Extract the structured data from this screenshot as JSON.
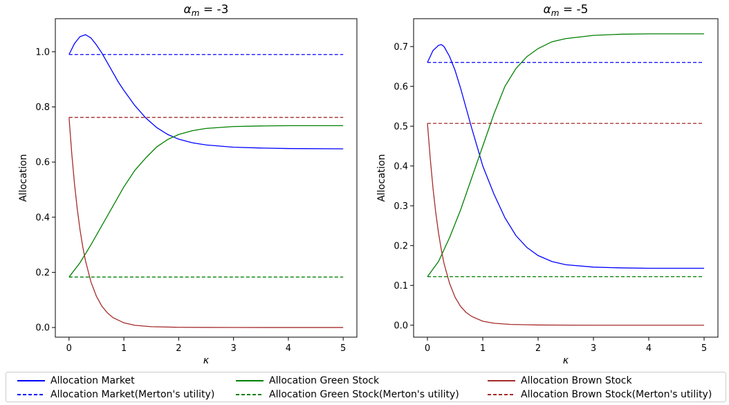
{
  "chart_data": [
    {
      "type": "line",
      "title_prefix": "α",
      "title_subscript": "m",
      "title_suffix": " = -3",
      "xlabel": "κ",
      "ylabel": "Allocation",
      "xlim": [
        -0.25,
        5.25
      ],
      "ylim": [
        -0.035,
        1.12
      ],
      "xticks": [
        0,
        1,
        2,
        3,
        4,
        5
      ],
      "yticks": [
        0.0,
        0.2,
        0.4,
        0.6,
        0.8,
        1.0
      ],
      "ytick_labels": [
        "0.0",
        "0.2",
        "0.4",
        "0.6",
        "0.8",
        "1.0"
      ],
      "series": [
        {
          "name": "Allocation Market",
          "color": "#0000ff",
          "dash": "solid",
          "x": [
            0,
            0.1,
            0.2,
            0.3,
            0.4,
            0.5,
            0.6,
            0.7,
            0.8,
            0.9,
            1.0,
            1.2,
            1.4,
            1.6,
            1.8,
            2.0,
            2.25,
            2.5,
            3.0,
            3.5,
            4.0,
            5.0
          ],
          "y": [
            0.99,
            1.03,
            1.055,
            1.062,
            1.05,
            1.025,
            0.995,
            0.96,
            0.925,
            0.89,
            0.86,
            0.805,
            0.76,
            0.725,
            0.7,
            0.683,
            0.67,
            0.662,
            0.654,
            0.651,
            0.649,
            0.648
          ]
        },
        {
          "name": "Allocation Market(Merton's utility)",
          "color": "#0000ff",
          "dash": "dashed",
          "x": [
            0,
            5
          ],
          "y": [
            0.99,
            0.99
          ]
        },
        {
          "name": "Allocation Green Stock",
          "color": "#008000",
          "dash": "solid",
          "x": [
            0,
            0.2,
            0.4,
            0.6,
            0.8,
            1.0,
            1.2,
            1.4,
            1.6,
            1.8,
            2.0,
            2.25,
            2.5,
            3.0,
            3.5,
            4.0,
            5.0
          ],
          "y": [
            0.183,
            0.235,
            0.3,
            0.37,
            0.44,
            0.51,
            0.57,
            0.615,
            0.655,
            0.682,
            0.7,
            0.714,
            0.722,
            0.729,
            0.731,
            0.732,
            0.732
          ]
        },
        {
          "name": "Allocation Green Stock(Merton's utility)",
          "color": "#008000",
          "dash": "dashed",
          "x": [
            0,
            5
          ],
          "y": [
            0.183,
            0.183
          ]
        },
        {
          "name": "Allocation Brown Stock",
          "color": "#a52a2a",
          "dash": "solid",
          "x": [
            0,
            0.05,
            0.1,
            0.15,
            0.2,
            0.25,
            0.3,
            0.4,
            0.5,
            0.6,
            0.7,
            0.8,
            1.0,
            1.2,
            1.5,
            2.0,
            2.5,
            3.0,
            4.0,
            5.0
          ],
          "y": [
            0.762,
            0.63,
            0.52,
            0.43,
            0.355,
            0.293,
            0.242,
            0.165,
            0.113,
            0.077,
            0.053,
            0.036,
            0.017,
            0.008,
            0.003,
            0.0008,
            0.0003,
            0.0001,
            0.0,
            0.0
          ]
        },
        {
          "name": "Allocation Brown Stock(Merton's utility)",
          "color": "#a52a2a",
          "dash": "dashed",
          "x": [
            0,
            5
          ],
          "y": [
            0.762,
            0.762
          ]
        }
      ]
    },
    {
      "type": "line",
      "title_prefix": "α",
      "title_subscript": "m",
      "title_suffix": " = -5",
      "xlabel": "κ",
      "ylabel": "Allocation",
      "xlim": [
        -0.25,
        5.25
      ],
      "ylim": [
        -0.03,
        0.77
      ],
      "xticks": [
        0,
        1,
        2,
        3,
        4,
        5
      ],
      "yticks": [
        0.0,
        0.1,
        0.2,
        0.3,
        0.4,
        0.5,
        0.6,
        0.7
      ],
      "ytick_labels": [
        "0.0",
        "0.1",
        "0.2",
        "0.3",
        "0.4",
        "0.5",
        "0.6",
        "0.7"
      ],
      "series": [
        {
          "name": "Allocation Market",
          "color": "#0000ff",
          "dash": "solid",
          "x": [
            0,
            0.1,
            0.2,
            0.25,
            0.3,
            0.4,
            0.5,
            0.6,
            0.7,
            0.8,
            0.9,
            1.0,
            1.2,
            1.4,
            1.6,
            1.8,
            2.0,
            2.25,
            2.5,
            3.0,
            3.5,
            4.0,
            5.0
          ],
          "y": [
            0.66,
            0.69,
            0.703,
            0.705,
            0.7,
            0.675,
            0.64,
            0.595,
            0.545,
            0.495,
            0.448,
            0.4,
            0.33,
            0.27,
            0.225,
            0.195,
            0.175,
            0.16,
            0.152,
            0.146,
            0.144,
            0.143,
            0.143
          ]
        },
        {
          "name": "Allocation Market(Merton's utility)",
          "color": "#0000ff",
          "dash": "dashed",
          "x": [
            0,
            5
          ],
          "y": [
            0.66,
            0.66
          ]
        },
        {
          "name": "Allocation Green Stock",
          "color": "#008000",
          "dash": "solid",
          "x": [
            0,
            0.2,
            0.4,
            0.6,
            0.8,
            1.0,
            1.2,
            1.4,
            1.6,
            1.8,
            2.0,
            2.25,
            2.5,
            3.0,
            3.5,
            4.0,
            5.0
          ],
          "y": [
            0.122,
            0.16,
            0.22,
            0.29,
            0.37,
            0.45,
            0.53,
            0.6,
            0.645,
            0.675,
            0.695,
            0.712,
            0.72,
            0.728,
            0.731,
            0.732,
            0.732
          ]
        },
        {
          "name": "Allocation Green Stock(Merton's utility)",
          "color": "#008000",
          "dash": "dashed",
          "x": [
            0,
            5
          ],
          "y": [
            0.122,
            0.122
          ]
        },
        {
          "name": "Allocation Brown Stock",
          "color": "#a52a2a",
          "dash": "solid",
          "x": [
            0,
            0.05,
            0.1,
            0.15,
            0.2,
            0.25,
            0.3,
            0.4,
            0.5,
            0.6,
            0.7,
            0.8,
            1.0,
            1.2,
            1.5,
            2.0,
            2.5,
            3.0,
            4.0,
            5.0
          ],
          "y": [
            0.507,
            0.42,
            0.345,
            0.283,
            0.232,
            0.19,
            0.155,
            0.105,
            0.07,
            0.047,
            0.032,
            0.022,
            0.01,
            0.005,
            0.002,
            0.0005,
            0.0002,
            0.0,
            0.0,
            0.0
          ]
        },
        {
          "name": "Allocation Brown Stock(Merton's utility)",
          "color": "#a52a2a",
          "dash": "dashed",
          "x": [
            0,
            5
          ],
          "y": [
            0.507,
            0.507
          ]
        }
      ]
    }
  ],
  "legend": {
    "placement": "bottom",
    "entries": [
      {
        "label": "Allocation Market",
        "color": "#0000ff",
        "dash": "solid"
      },
      {
        "label": "Allocation Market(Merton's utility)",
        "color": "#0000ff",
        "dash": "dashed"
      },
      {
        "label": "Allocation Green Stock",
        "color": "#008000",
        "dash": "solid"
      },
      {
        "label": "Allocation Green Stock(Merton's utility)",
        "color": "#008000",
        "dash": "dashed"
      },
      {
        "label": "Allocation Brown Stock",
        "color": "#a52a2a",
        "dash": "solid"
      },
      {
        "label": "Allocation Brown Stock(Merton's utility)",
        "color": "#a52a2a",
        "dash": "dashed"
      }
    ]
  }
}
